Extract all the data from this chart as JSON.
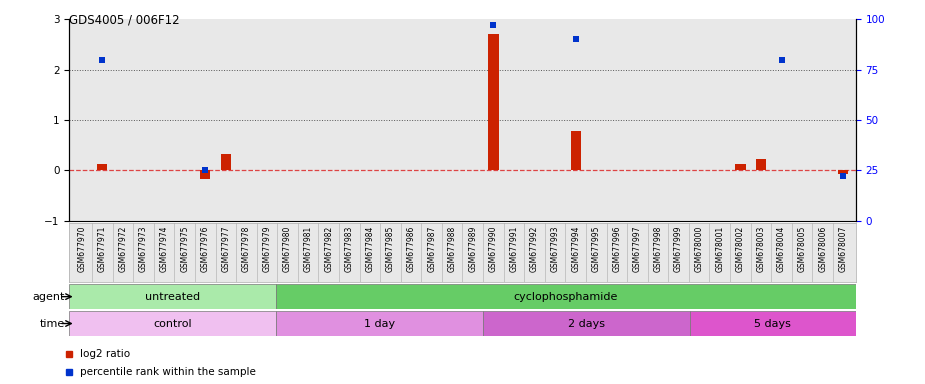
{
  "title": "GDS4005 / 006F12",
  "samples": [
    "GSM677970",
    "GSM677971",
    "GSM677972",
    "GSM677973",
    "GSM677974",
    "GSM677975",
    "GSM677976",
    "GSM677977",
    "GSM677978",
    "GSM677979",
    "GSM677980",
    "GSM677981",
    "GSM677982",
    "GSM677983",
    "GSM677984",
    "GSM677985",
    "GSM677986",
    "GSM677987",
    "GSM677988",
    "GSM677989",
    "GSM677990",
    "GSM677991",
    "GSM677992",
    "GSM677993",
    "GSM677994",
    "GSM677995",
    "GSM677996",
    "GSM677997",
    "GSM677998",
    "GSM677999",
    "GSM678000",
    "GSM678001",
    "GSM678002",
    "GSM678003",
    "GSM678004",
    "GSM678005",
    "GSM678006",
    "GSM678007"
  ],
  "log2_ratio": [
    0.0,
    0.12,
    0.0,
    0.0,
    0.0,
    0.0,
    -0.18,
    0.32,
    0.0,
    0.0,
    0.0,
    0.0,
    0.0,
    0.0,
    0.0,
    0.0,
    0.0,
    0.0,
    0.0,
    0.0,
    2.7,
    0.0,
    0.0,
    0.0,
    0.78,
    0.0,
    0.0,
    0.0,
    0.0,
    0.0,
    0.0,
    0.0,
    0.12,
    0.22,
    0.0,
    0.0,
    0.0,
    -0.08
  ],
  "percentile": [
    null,
    80,
    null,
    null,
    null,
    null,
    25,
    null,
    null,
    null,
    null,
    null,
    null,
    null,
    null,
    null,
    null,
    null,
    null,
    null,
    97,
    null,
    null,
    null,
    90,
    null,
    null,
    null,
    null,
    null,
    null,
    null,
    null,
    null,
    80,
    null,
    null,
    22
  ],
  "agent_groups": [
    {
      "label": "untreated",
      "start": 0,
      "end": 9,
      "color": "#aaeaaa"
    },
    {
      "label": "cyclophosphamide",
      "start": 10,
      "end": 37,
      "color": "#66cc66"
    }
  ],
  "time_groups": [
    {
      "label": "control",
      "start": 0,
      "end": 9,
      "color": "#f0c0f0"
    },
    {
      "label": "1 day",
      "start": 10,
      "end": 19,
      "color": "#e090e0"
    },
    {
      "label": "2 days",
      "start": 20,
      "end": 29,
      "color": "#cc66cc"
    },
    {
      "label": "5 days",
      "start": 30,
      "end": 37,
      "color": "#dd55cc"
    }
  ],
  "ylim_left": [
    -1,
    3
  ],
  "ylim_right": [
    0,
    100
  ],
  "yticks_left": [
    -1,
    0,
    1,
    2,
    3
  ],
  "yticks_right": [
    0,
    25,
    50,
    75,
    100
  ],
  "bar_color_red": "#cc2200",
  "bar_color_blue": "#0033cc",
  "zero_line_color": "#dd4444",
  "dotted_line_color": "#555555",
  "bg_color": "#e8e8e8"
}
